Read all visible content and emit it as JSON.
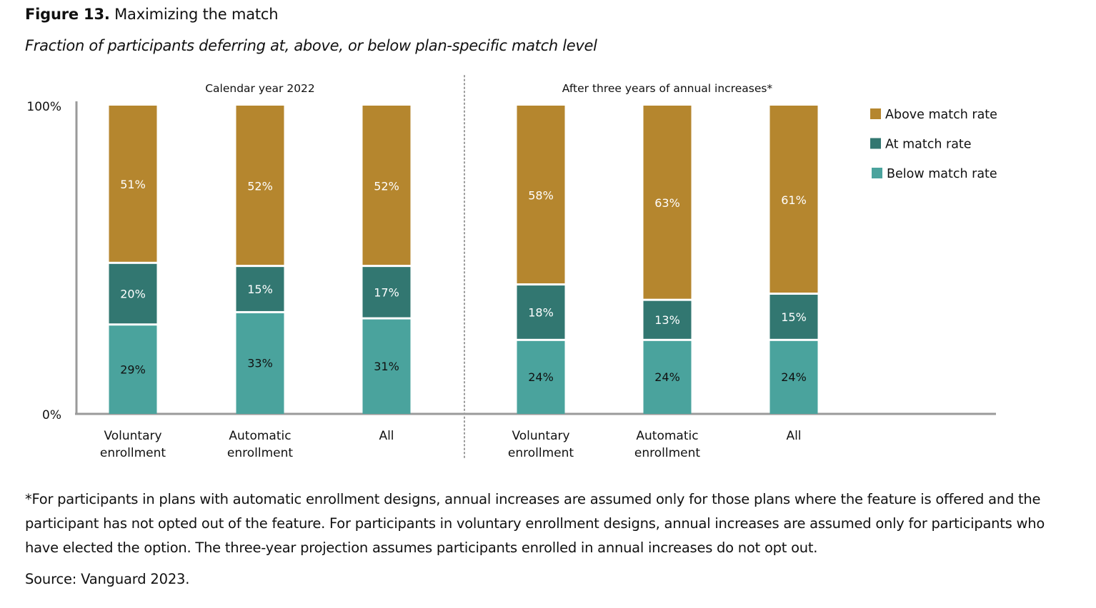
{
  "figure": {
    "label": "Figure 13.",
    "title": "Maximizing the match",
    "subtitle": "Fraction of participants deferring at, above, or below plan-specific match level"
  },
  "chart_data": {
    "type": "bar",
    "stacked": true,
    "title": "Maximizing the match",
    "subtitle": "Fraction of participants deferring at, above, or below plan-specific match level",
    "ylim": [
      0,
      100
    ],
    "yticks": [
      "0%",
      "100%"
    ],
    "grid": false,
    "legend_position": "top-right",
    "colors": {
      "Above match rate": "#b5862e",
      "At match rate": "#327771",
      "Below match rate": "#4aa39d"
    },
    "panels": [
      {
        "title": "Calendar year 2022",
        "categories": [
          "Voluntary enrollment",
          "Automatic enrollment",
          "All"
        ],
        "category_lines": [
          [
            "Voluntary",
            "enrollment"
          ],
          [
            "Automatic",
            "enrollment"
          ],
          [
            "All",
            ""
          ]
        ],
        "series": [
          {
            "name": "Below match rate",
            "values": [
              29,
              33,
              31
            ]
          },
          {
            "name": "At match rate",
            "values": [
              20,
              15,
              17
            ]
          },
          {
            "name": "Above match rate",
            "values": [
              51,
              52,
              52
            ]
          }
        ]
      },
      {
        "title": "After three years of annual increases*",
        "categories": [
          "Voluntary enrollment",
          "Automatic enrollment",
          "All"
        ],
        "category_lines": [
          [
            "Voluntary",
            "enrollment"
          ],
          [
            "Automatic",
            "enrollment"
          ],
          [
            "All",
            ""
          ]
        ],
        "series": [
          {
            "name": "Below match rate",
            "values": [
              24,
              24,
              24
            ]
          },
          {
            "name": "At match rate",
            "values": [
              18,
              13,
              15
            ]
          },
          {
            "name": "Above match rate",
            "values": [
              58,
              63,
              61
            ]
          }
        ]
      }
    ],
    "legend": [
      "Above match rate",
      "At match rate",
      "Below match rate"
    ]
  },
  "footnote": "*For participants in plans with automatic enrollment designs, annual increases are assumed only for those plans where the feature is offered and the participant has not opted out of the feature. For participants in voluntary enrollment designs, annual increases are assumed only for participants who have elected the option. The three-year projection assumes participants enrolled in annual increases do not opt out.",
  "source": "Source: Vanguard 2023."
}
